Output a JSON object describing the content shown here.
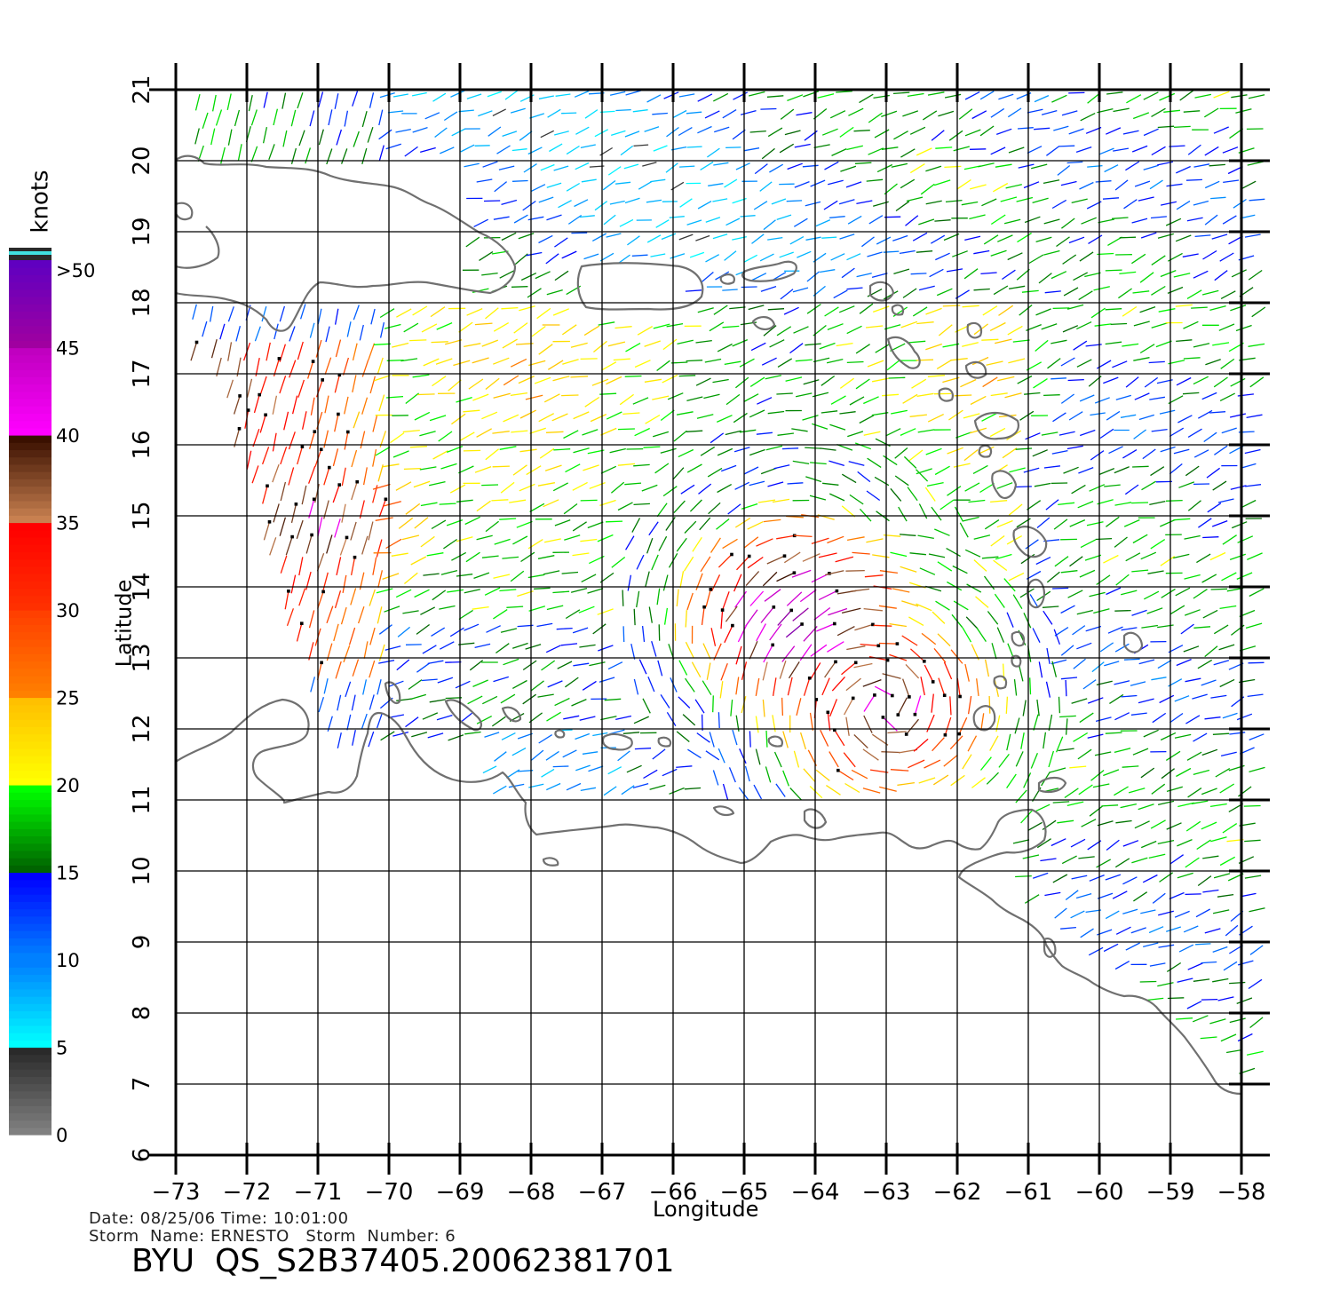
{
  "map": {
    "xlabel": "Longitude",
    "ylabel": "Latitude",
    "lon_range": [
      -73,
      -58
    ],
    "lat_range": [
      6,
      21
    ],
    "lon_ticks": [
      "−73",
      "−72",
      "−71",
      "−70",
      "−69",
      "−68",
      "−67",
      "−66",
      "−65",
      "−64",
      "−63",
      "−62",
      "−61",
      "−60",
      "−59",
      "−58"
    ],
    "lat_ticks": [
      "6",
      "7",
      "8",
      "9",
      "10",
      "11",
      "12",
      "13",
      "14",
      "15",
      "16",
      "17",
      "18",
      "19",
      "20",
      "21"
    ],
    "grid": true,
    "colors": {
      "grid": "#000000",
      "coast": "#707070",
      "rain_flag": "#000000"
    }
  },
  "colorbar": {
    "unit_label": "knots",
    "labels": [
      "0",
      "5",
      "10",
      "15",
      "20",
      "25",
      "30",
      "35",
      "40",
      "45",
      ">50"
    ],
    "bands": [
      {
        "from": 0,
        "to": 5,
        "colors": [
          "#808080",
          "#2a2a2a"
        ]
      },
      {
        "from": 5,
        "to": 10,
        "colors": [
          "#00ffff",
          "#0080ff"
        ]
      },
      {
        "from": 10,
        "to": 15,
        "colors": [
          "#0080ff",
          "#0000ff"
        ]
      },
      {
        "from": 15,
        "to": 20,
        "colors": [
          "#006400",
          "#00ff00"
        ]
      },
      {
        "from": 20,
        "to": 25,
        "colors": [
          "#ffff00",
          "#ffc000"
        ]
      },
      {
        "from": 25,
        "to": 30,
        "colors": [
          "#ff8000",
          "#ff4000"
        ]
      },
      {
        "from": 30,
        "to": 35,
        "colors": [
          "#ff3000",
          "#ff0000"
        ]
      },
      {
        "from": 35,
        "to": 40,
        "colors": [
          "#c88050",
          "#3a1000"
        ]
      },
      {
        "from": 40,
        "to": 45,
        "colors": [
          "#ff00ff",
          "#c000c0"
        ]
      },
      {
        "from": 45,
        "to": 50,
        "colors": [
          "#a000a0",
          "#6000c0"
        ]
      }
    ]
  },
  "wind_field": {
    "centers": [
      {
        "lon": -64.2,
        "lat": 13.7,
        "speed": 37
      },
      {
        "lon": -63.0,
        "lat": 12.3,
        "speed": 30
      },
      {
        "lon": -71.0,
        "lat": 15.0,
        "speed": 30
      }
    ]
  },
  "footer": {
    "info_line1": "Date: 08/25/06   Time: 10:01:00",
    "info_line2": "Storm  Name: ERNESTO   Storm  Number: 6",
    "product": "BYU  QS_S2B37405.20062381701"
  }
}
